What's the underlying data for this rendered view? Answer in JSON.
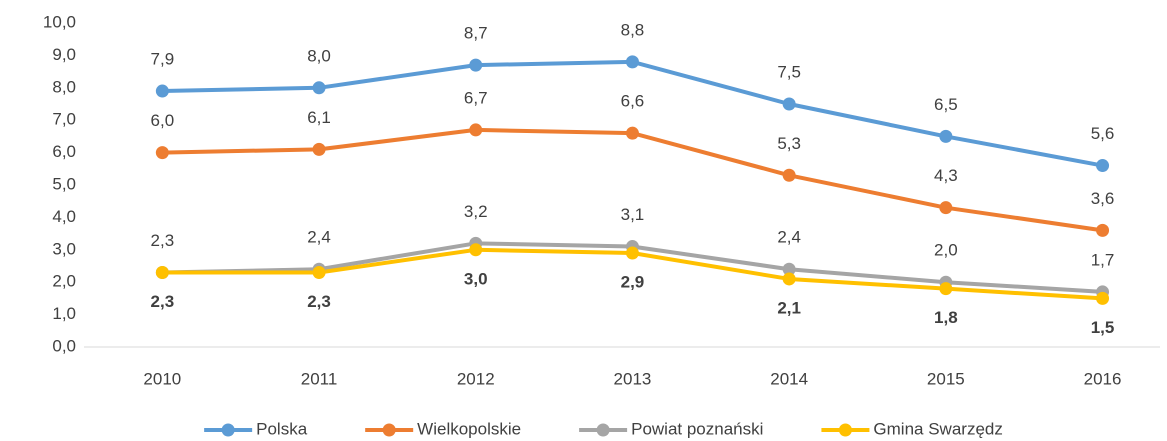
{
  "chart_data": {
    "type": "line",
    "categories": [
      "2010",
      "2011",
      "2012",
      "2013",
      "2014",
      "2015",
      "2016"
    ],
    "series": [
      {
        "name": "Polska",
        "color": "#5b9bd5",
        "values": [
          7.9,
          8.0,
          8.7,
          8.8,
          7.5,
          6.5,
          5.6
        ],
        "value_labels": [
          "7,9",
          "8,0",
          "8,7",
          "8,8",
          "7,5",
          "6,5",
          "5,6"
        ],
        "label_position": "above"
      },
      {
        "name": "Wielkopolskie",
        "color": "#ed7d31",
        "values": [
          6.0,
          6.1,
          6.7,
          6.6,
          5.3,
          4.3,
          3.6
        ],
        "value_labels": [
          "6,0",
          "6,1",
          "6,7",
          "6,6",
          "5,3",
          "4,3",
          "3,6"
        ],
        "label_position": "above"
      },
      {
        "name": "Powiat poznański",
        "color": "#a5a5a5",
        "values": [
          2.3,
          2.4,
          3.2,
          3.1,
          2.4,
          2.0,
          1.7
        ],
        "value_labels": [
          "2,3",
          "2,4",
          "3,2",
          "3,1",
          "2,4",
          "2,0",
          "1,7"
        ],
        "label_position": "above"
      },
      {
        "name": "Gmina Swarzędz",
        "color": "#ffc000",
        "values": [
          2.3,
          2.3,
          3.0,
          2.9,
          2.1,
          1.8,
          1.5
        ],
        "value_labels": [
          "2,3",
          "2,3",
          "3,0",
          "2,9",
          "2,1",
          "1,8",
          "1,5"
        ],
        "label_position": "below",
        "label_bold": true
      }
    ],
    "ylim": [
      0,
      10
    ],
    "yticks": [
      {
        "value": 0,
        "label": "0,0"
      },
      {
        "value": 1,
        "label": "1,0"
      },
      {
        "value": 2,
        "label": "2,0"
      },
      {
        "value": 3,
        "label": "3,0"
      },
      {
        "value": 4,
        "label": "4,0"
      },
      {
        "value": 5,
        "label": "5,0"
      },
      {
        "value": 6,
        "label": "6,0"
      },
      {
        "value": 7,
        "label": "7,0"
      },
      {
        "value": 8,
        "label": "8,0"
      },
      {
        "value": 9,
        "label": "9,0"
      },
      {
        "value": 10,
        "label": "10,0"
      }
    ],
    "grid": false,
    "legend": "bottom"
  }
}
